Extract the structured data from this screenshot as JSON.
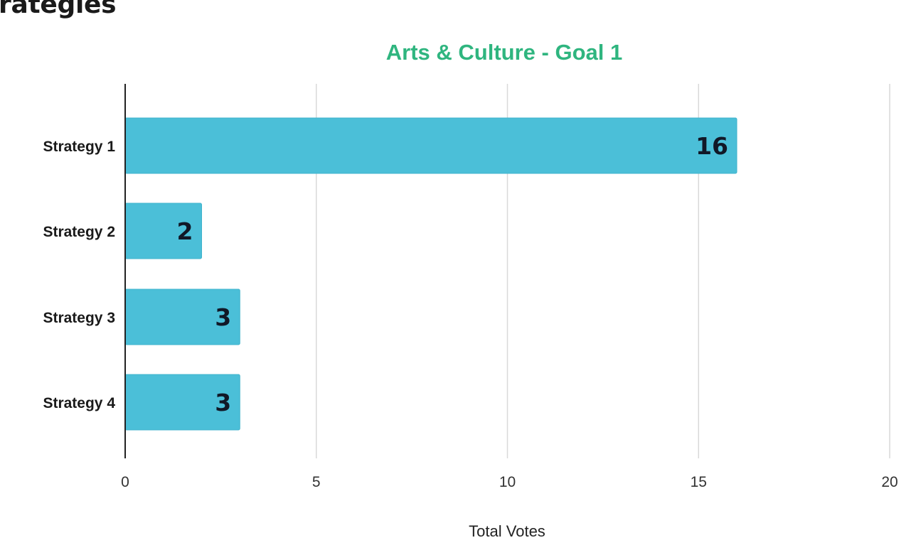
{
  "page": {
    "heading": "rategies"
  },
  "colors": {
    "bar": "#4bbfd8",
    "bar_edge": "#3fb3cc",
    "title": "#2fb57f",
    "grid": "#d9d9d9",
    "axis": "#222222"
  },
  "chart_data": {
    "type": "bar",
    "orientation": "horizontal",
    "title": "Arts & Culture - Goal 1",
    "categories": [
      "Strategy 1",
      "Strategy 2",
      "Strategy 3",
      "Strategy 4"
    ],
    "values": [
      16,
      2,
      3,
      3
    ],
    "data_labels": [
      "16",
      "2",
      "3",
      "3"
    ],
    "xlabel": "Total Votes",
    "ylabel": "",
    "xlim": [
      0,
      20
    ],
    "x_ticks": [
      0,
      5,
      10,
      15,
      20
    ],
    "x_tick_labels": [
      "0",
      "5",
      "10",
      "15",
      "20"
    ],
    "grid": "vertical",
    "legend": "none"
  }
}
